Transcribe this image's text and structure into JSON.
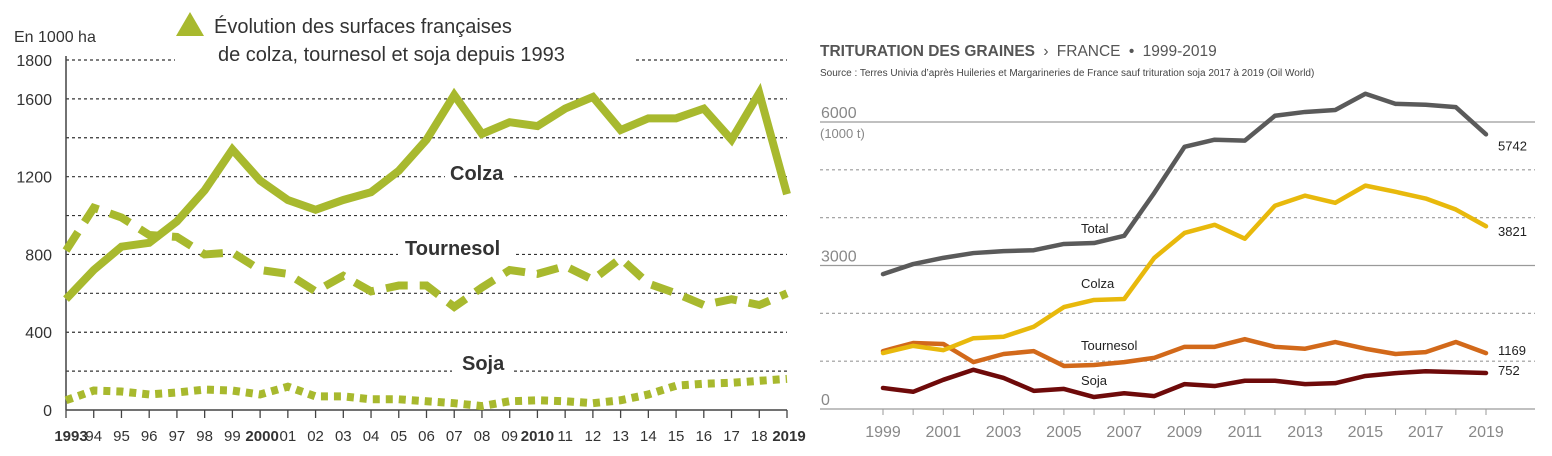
{
  "chart_data": [
    {
      "type": "line",
      "title_line1": "Évolution des surfaces françaises",
      "title_line2": "de colza, tournesol et soja depuis 1993",
      "ylabel": "En 1000 ha",
      "xlabel": "",
      "ylim": [
        0,
        1800
      ],
      "yticks": [
        0,
        400,
        800,
        1200,
        1600,
        1800
      ],
      "ytick_labels": [
        "0",
        "400",
        "800",
        "1200",
        "1600",
        "1800"
      ],
      "grid_values": [
        200,
        400,
        600,
        800,
        1000,
        1200,
        1400,
        1600,
        1800
      ],
      "grid": true,
      "x": [
        1993,
        1994,
        1995,
        1996,
        1997,
        1998,
        1999,
        2000,
        2001,
        2002,
        2003,
        2004,
        2005,
        2006,
        2007,
        2008,
        2009,
        2010,
        2011,
        2012,
        2013,
        2014,
        2015,
        2016,
        2017,
        2018,
        2019
      ],
      "xtick_labels": [
        "1993",
        "94",
        "95",
        "96",
        "97",
        "98",
        "99",
        "2000",
        "01",
        "02",
        "03",
        "04",
        "05",
        "06",
        "07",
        "08",
        "09",
        "2010",
        "11",
        "12",
        "13",
        "14",
        "15",
        "16",
        "17",
        "18",
        "2019"
      ],
      "xtick_bold": [
        "1993",
        "2000",
        "2010",
        "2019"
      ],
      "color": "#a8b92e",
      "series": [
        {
          "name": "Colza",
          "style": "solid",
          "values": [
            570,
            720,
            840,
            860,
            970,
            1130,
            1340,
            1180,
            1080,
            1030,
            1080,
            1120,
            1230,
            1390,
            1620,
            1420,
            1480,
            1460,
            1550,
            1610,
            1440,
            1500,
            1500,
            1550,
            1390,
            1630,
            1110
          ]
        },
        {
          "name": "Tournesol",
          "style": "dashed",
          "values": [
            820,
            1040,
            990,
            900,
            890,
            800,
            810,
            720,
            700,
            610,
            690,
            610,
            640,
            640,
            530,
            630,
            720,
            700,
            740,
            670,
            780,
            650,
            600,
            540,
            570,
            540,
            600
          ]
        },
        {
          "name": "Soja",
          "style": "dotted",
          "values": [
            50,
            100,
            95,
            80,
            90,
            105,
            100,
            80,
            120,
            70,
            70,
            55,
            55,
            45,
            35,
            20,
            45,
            50,
            45,
            35,
            50,
            80,
            125,
            135,
            140,
            150,
            160
          ]
        }
      ],
      "labels": [
        {
          "text": "Colza",
          "series": "Colza",
          "at_value": 1200
        },
        {
          "text": "Tournesol",
          "series": "Tournesol",
          "at_value": 820
        },
        {
          "text": "Soja",
          "series": "Soja",
          "at_value": 250
        }
      ],
      "legend_marker": "triangle-icon"
    },
    {
      "type": "line",
      "title": "TRITURATION DES GRAINES",
      "title_sep": "›",
      "title_region": "FRANCE",
      "title_bullet": "•",
      "title_period": "1999-2019",
      "subtitle": "Source : Terres Univia d’après Huileries et Margarineries de France sauf trituration soja 2017 à 2019 (Oil World)",
      "ylabel": "(1000 t)",
      "ylim": [
        0,
        6000
      ],
      "yticks": [
        0,
        3000,
        6000
      ],
      "ytick_labels": [
        "0",
        "3000",
        "6000"
      ],
      "grid_values": [
        1000,
        2000,
        4000,
        5000
      ],
      "grid": true,
      "x": [
        1999,
        2000,
        2001,
        2002,
        2003,
        2004,
        2005,
        2006,
        2007,
        2008,
        2009,
        2010,
        2011,
        2012,
        2013,
        2014,
        2015,
        2016,
        2017,
        2018,
        2019
      ],
      "xtick_labels": [
        "1999",
        "2001",
        "2003",
        "2005",
        "2007",
        "2009",
        "2011",
        "2013",
        "2015",
        "2017",
        "2019"
      ],
      "series": [
        {
          "name": "Total",
          "color": "#5a5a5a",
          "values": [
            2820,
            3030,
            3160,
            3260,
            3300,
            3320,
            3450,
            3470,
            3620,
            4520,
            5480,
            5630,
            5610,
            6130,
            6210,
            6250,
            6590,
            6380,
            6360,
            6310,
            5742
          ],
          "end_label": "5742"
        },
        {
          "name": "Colza",
          "color": "#e8b90c",
          "values": [
            1170,
            1320,
            1230,
            1480,
            1510,
            1720,
            2130,
            2280,
            2300,
            3160,
            3680,
            3850,
            3560,
            4250,
            4460,
            4310,
            4670,
            4540,
            4400,
            4170,
            3821
          ],
          "end_label": "3821"
        },
        {
          "name": "Tournesol",
          "color": "#d2691a",
          "values": [
            1210,
            1380,
            1360,
            980,
            1150,
            1210,
            900,
            920,
            980,
            1070,
            1300,
            1300,
            1460,
            1300,
            1260,
            1400,
            1260,
            1150,
            1190,
            1400,
            1169
          ],
          "end_label": "1169"
        },
        {
          "name": "Soja",
          "color": "#6e0a0a",
          "values": [
            440,
            360,
            610,
            820,
            650,
            380,
            420,
            250,
            330,
            270,
            520,
            480,
            590,
            590,
            520,
            540,
            690,
            750,
            790,
            770,
            752
          ],
          "end_label": "752"
        }
      ],
      "inline_labels": [
        {
          "text": "Total",
          "series": "Total",
          "year": 2006.5
        },
        {
          "text": "Colza",
          "series": "Colza",
          "year": 2006.5
        },
        {
          "text": "Tournesol",
          "series": "Tournesol",
          "year": 2006.5
        },
        {
          "text": "Soja",
          "series": "Soja",
          "year": 2006.5
        }
      ]
    }
  ]
}
